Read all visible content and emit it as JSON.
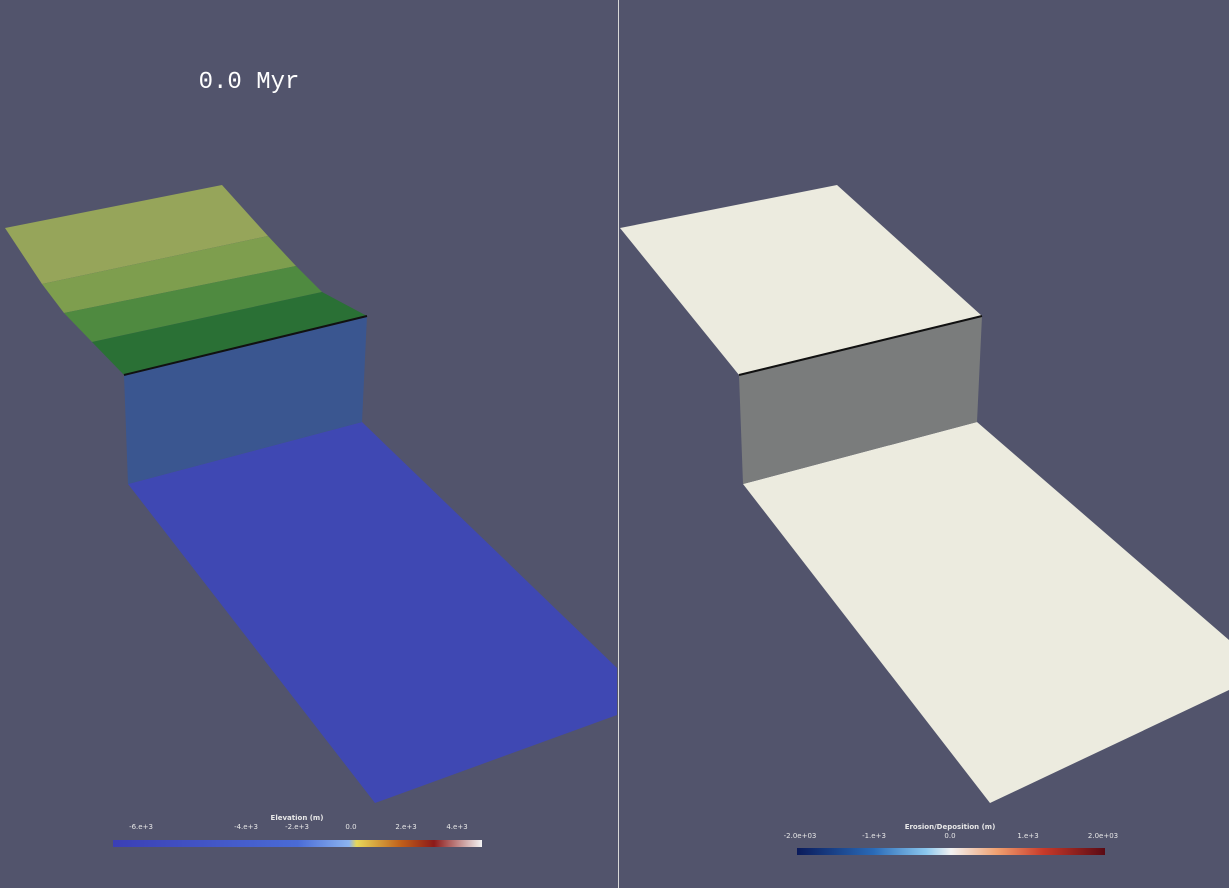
{
  "left_view": {
    "time_label": "0.0 Myr",
    "colorbar": {
      "title": "Elevation (m)",
      "ticks": [
        "-6.e+3",
        "-4.e+3",
        "-2.e+3",
        "0.0",
        "2.e+3",
        "4.e+3"
      ]
    }
  },
  "right_view": {
    "colorbar": {
      "title": "Erosion/Deposition (m)",
      "ticks": [
        "-2.0e+03",
        "-1.e+3",
        "0.0",
        "1.e+3",
        "2.0e+03"
      ]
    }
  }
}
